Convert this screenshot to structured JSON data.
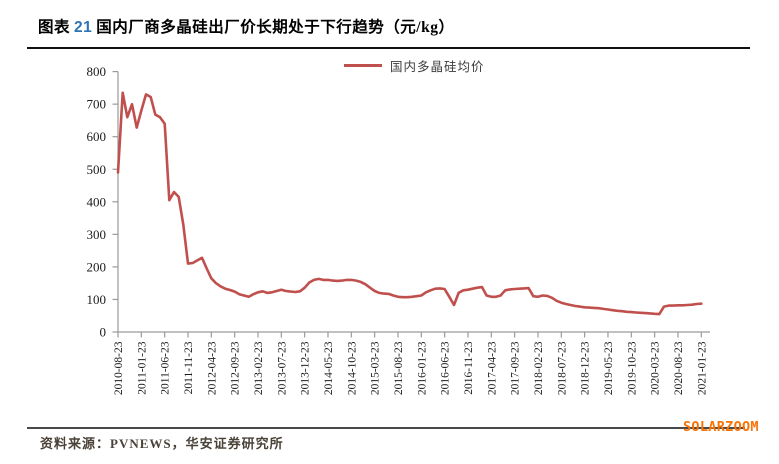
{
  "title": {
    "prefix": "图表",
    "number": "21",
    "text": "国内厂商多晶硅出厂价长期处于下行趋势（元/kg）"
  },
  "legend": {
    "label": "国内多晶硅均价"
  },
  "source": {
    "label": "资料来源：PVNEWS，华安证券研究所"
  },
  "watermark": "SOLARZOOM",
  "colors": {
    "line": "#C0504D",
    "title_number": "#2E74B5",
    "axis": "#9a9a9a",
    "tick_text": "#1c1c1c",
    "watermark": "#F97306"
  },
  "chart_data": {
    "type": "line",
    "title": "国内厂商多晶硅出厂价长期处于下行趋势（元/kg）",
    "unit": "元/kg",
    "legend": [
      "国内多晶硅均价"
    ],
    "legend_position": "top-center",
    "grid": false,
    "ylim": [
      0,
      800
    ],
    "y_ticks": [
      0,
      100,
      200,
      300,
      400,
      500,
      600,
      700,
      800
    ],
    "x_tick_labels": [
      "2010-08-23",
      "2011-01-23",
      "2011-06-23",
      "2011-11-23",
      "2012-04-23",
      "2012-09-23",
      "2013-02-23",
      "2013-07-23",
      "2013-12-23",
      "2014-05-23",
      "2014-10-23",
      "2015-03-23",
      "2015-08-23",
      "2016-01-23",
      "2016-06-23",
      "2016-11-23",
      "2017-04-23",
      "2017-09-23",
      "2018-02-23",
      "2018-07-23",
      "2018-12-23",
      "2019-05-23",
      "2019-10-23",
      "2020-03-23",
      "2020-08-23",
      "2021-01-23"
    ],
    "x": [
      "2010-08",
      "2010-09",
      "2010-10",
      "2010-11",
      "2010-12",
      "2011-01",
      "2011-02",
      "2011-03",
      "2011-04",
      "2011-05",
      "2011-06",
      "2011-07",
      "2011-08",
      "2011-09",
      "2011-10",
      "2011-11",
      "2011-12",
      "2012-01",
      "2012-02",
      "2012-03",
      "2012-04",
      "2012-05",
      "2012-06",
      "2012-07",
      "2012-08",
      "2012-09",
      "2012-10",
      "2012-11",
      "2012-12",
      "2013-01",
      "2013-02",
      "2013-03",
      "2013-04",
      "2013-05",
      "2013-06",
      "2013-07",
      "2013-08",
      "2013-09",
      "2013-10",
      "2013-11",
      "2013-12",
      "2014-01",
      "2014-02",
      "2014-03",
      "2014-04",
      "2014-05",
      "2014-06",
      "2014-07",
      "2014-08",
      "2014-09",
      "2014-10",
      "2014-11",
      "2014-12",
      "2015-01",
      "2015-02",
      "2015-03",
      "2015-04",
      "2015-05",
      "2015-06",
      "2015-07",
      "2015-08",
      "2015-09",
      "2015-10",
      "2015-11",
      "2015-12",
      "2016-01",
      "2016-02",
      "2016-03",
      "2016-04",
      "2016-05",
      "2016-06",
      "2016-07",
      "2016-08",
      "2016-09",
      "2016-10",
      "2016-11",
      "2016-12",
      "2017-01",
      "2017-02",
      "2017-03",
      "2017-04",
      "2017-05",
      "2017-06",
      "2017-07",
      "2017-08",
      "2017-09",
      "2017-10",
      "2017-11",
      "2017-12",
      "2018-01",
      "2018-02",
      "2018-03",
      "2018-04",
      "2018-05",
      "2018-06",
      "2018-07",
      "2018-08",
      "2018-09",
      "2018-10",
      "2018-11",
      "2018-12",
      "2019-01",
      "2019-02",
      "2019-03",
      "2019-04",
      "2019-05",
      "2019-06",
      "2019-07",
      "2019-08",
      "2019-09",
      "2019-10",
      "2019-11",
      "2019-12",
      "2020-01",
      "2020-02",
      "2020-03",
      "2020-04",
      "2020-05",
      "2020-06",
      "2020-07",
      "2020-08",
      "2020-09",
      "2020-10",
      "2020-11",
      "2020-12",
      "2021-01"
    ],
    "series": [
      {
        "name": "国内多晶硅均价",
        "values": [
          490,
          735,
          660,
          700,
          628,
          680,
          730,
          722,
          668,
          660,
          640,
          405,
          430,
          415,
          330,
          210,
          212,
          220,
          228,
          195,
          165,
          150,
          140,
          133,
          129,
          124,
          116,
          112,
          108,
          116,
          122,
          125,
          120,
          122,
          126,
          130,
          126,
          124,
          123,
          125,
          136,
          152,
          160,
          163,
          160,
          160,
          158,
          157,
          158,
          160,
          160,
          158,
          154,
          147,
          136,
          126,
          120,
          118,
          117,
          112,
          108,
          107,
          107,
          108,
          110,
          112,
          122,
          128,
          133,
          134,
          132,
          108,
          83,
          120,
          128,
          130,
          133,
          136,
          138,
          112,
          108,
          108,
          112,
          128,
          131,
          132,
          133,
          134,
          135,
          110,
          108,
          112,
          111,
          105,
          96,
          90,
          86,
          83,
          80,
          78,
          76,
          75,
          74,
          73,
          71,
          69,
          67,
          65,
          64,
          62,
          61,
          60,
          59,
          58,
          57,
          56,
          55,
          78,
          81,
          81,
          82,
          82,
          83,
          84,
          86,
          87
        ]
      }
    ]
  }
}
